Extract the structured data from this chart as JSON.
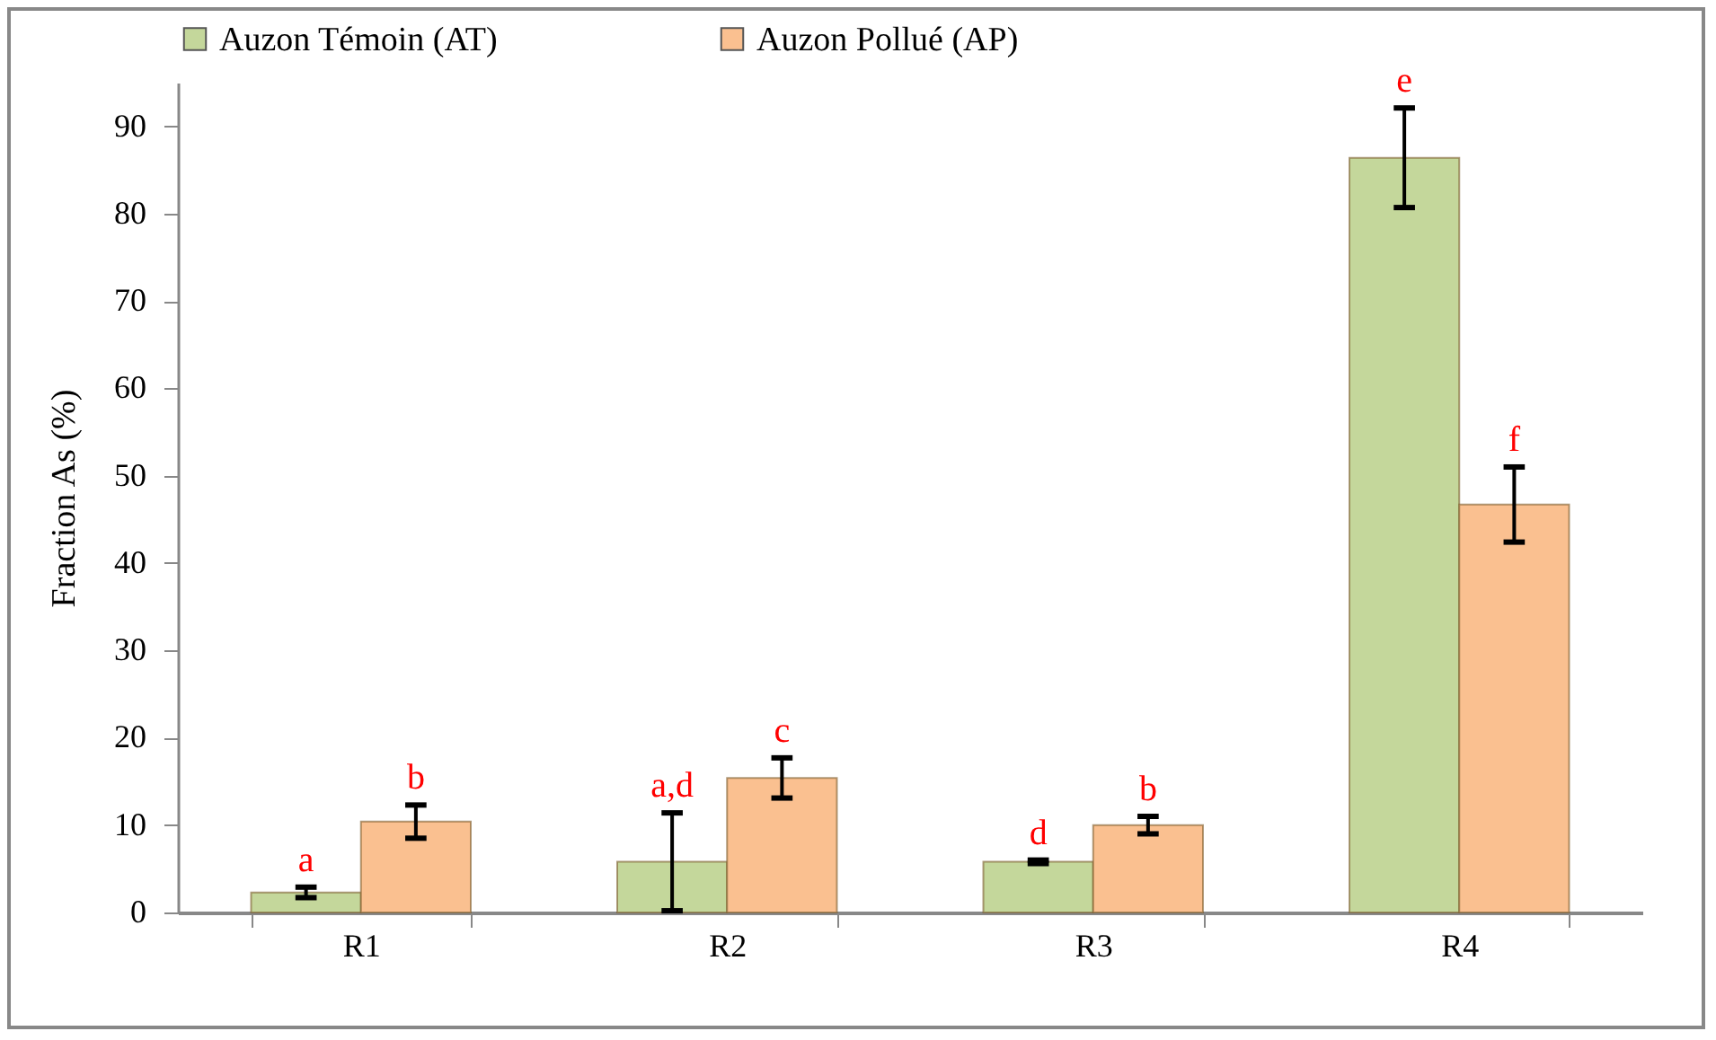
{
  "chart_data": {
    "type": "bar",
    "ylabel": "Fraction As (%)",
    "categories": [
      "R1",
      "R2",
      "R3",
      "R4"
    ],
    "ylim": [
      0,
      95
    ],
    "yticks": [
      0,
      10,
      20,
      30,
      40,
      50,
      60,
      70,
      80,
      90
    ],
    "grid": false,
    "legend": "top",
    "series": [
      {
        "name": "Auzon Témoin (AT)",
        "color": "#c4d79b",
        "values": [
          2.3,
          5.8,
          5.8,
          86.4
        ],
        "errors": [
          0.6,
          5.6,
          0.2,
          5.7
        ],
        "value_labels": [
          "a",
          "a,d",
          "d",
          "e"
        ]
      },
      {
        "name": "Auzon Pollué (AP)",
        "color": "#fac090",
        "values": [
          10.4,
          15.4,
          10.0,
          46.7
        ],
        "errors": [
          1.9,
          2.3,
          1.0,
          4.3
        ],
        "value_labels": [
          "b",
          "c",
          "b",
          "f"
        ]
      }
    ]
  }
}
